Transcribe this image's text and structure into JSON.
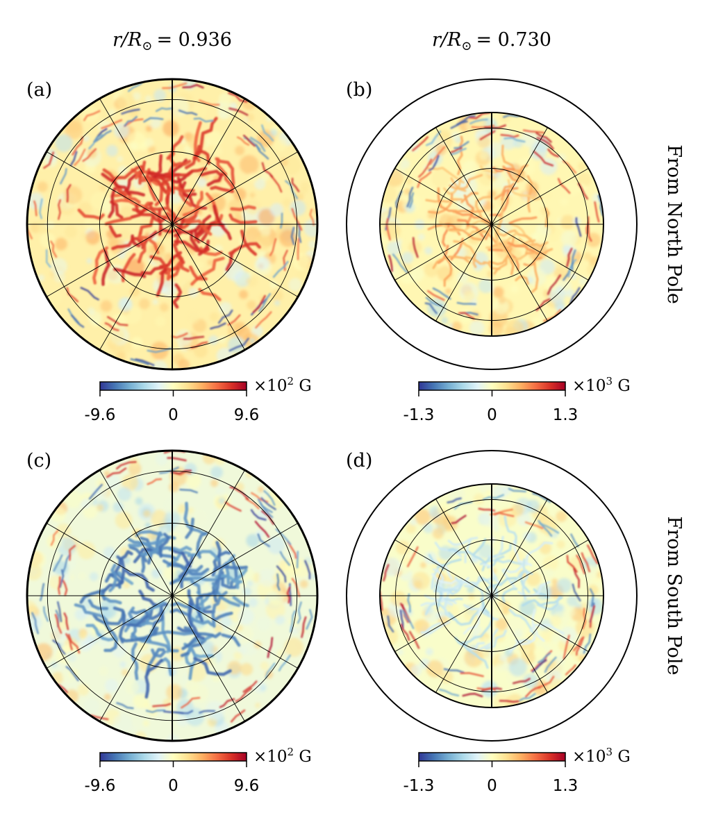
{
  "figure": {
    "columns": [
      {
        "title_lhs": "r/R",
        "sun_symbol": "⊙",
        "title_value": "= 0.936"
      },
      {
        "title_lhs": "r/R",
        "sun_symbol": "⊙",
        "title_value": "= 0.730"
      }
    ],
    "rows": [
      {
        "label": "From North Pole"
      },
      {
        "label": "From South Pole"
      }
    ]
  },
  "chart_data": [
    {
      "type": "heatmap",
      "projection": "polar",
      "panel": "(a)",
      "view": "From North Pole",
      "radius_label": "r/R⊙ = 0.936",
      "dominant_polarity": "positive",
      "colormap": "RdYlBu_r",
      "colorbar": {
        "min": -9.6,
        "mid": 0,
        "max": 9.6,
        "tick_labels": [
          "-9.6",
          "0",
          "9.6"
        ],
        "unit_prefix": "×10",
        "unit_exp": "2",
        "unit_suffix": " G"
      }
    },
    {
      "type": "heatmap",
      "projection": "polar",
      "panel": "(b)",
      "view": "From North Pole",
      "radius_label": "r/R⊙ = 0.730",
      "dominant_polarity": "weak-positive",
      "colormap": "RdYlBu_r",
      "colorbar": {
        "min": -1.3,
        "mid": 0,
        "max": 1.3,
        "tick_labels": [
          "-1.3",
          "0",
          "1.3"
        ],
        "unit_prefix": "×10",
        "unit_exp": "3",
        "unit_suffix": " G"
      }
    },
    {
      "type": "heatmap",
      "projection": "polar",
      "panel": "(c)",
      "view": "From South Pole",
      "radius_label": "r/R⊙ = 0.936",
      "dominant_polarity": "negative",
      "colormap": "RdYlBu_r",
      "colorbar": {
        "min": -9.6,
        "mid": 0,
        "max": 9.6,
        "tick_labels": [
          "-9.6",
          "0",
          "9.6"
        ],
        "unit_prefix": "×10",
        "unit_exp": "2",
        "unit_suffix": " G"
      }
    },
    {
      "type": "heatmap",
      "projection": "polar",
      "panel": "(d)",
      "view": "From South Pole",
      "radius_label": "r/R⊙ = 0.730",
      "dominant_polarity": "weak-negative",
      "colormap": "RdYlBu_r",
      "colorbar": {
        "min": -1.3,
        "mid": 0,
        "max": 1.3,
        "tick_labels": [
          "-1.3",
          "0",
          "1.3"
        ],
        "unit_prefix": "×10",
        "unit_exp": "3",
        "unit_suffix": " G"
      }
    }
  ],
  "colors": {
    "cmap_stops": [
      "#313695",
      "#4575b4",
      "#74add1",
      "#abd9e9",
      "#e0f3f8",
      "#ffffbf",
      "#fee090",
      "#fdae61",
      "#f46d43",
      "#d73027",
      "#a50026"
    ],
    "outline": "#000000",
    "grid": "#000000",
    "background": "#ffffff"
  }
}
